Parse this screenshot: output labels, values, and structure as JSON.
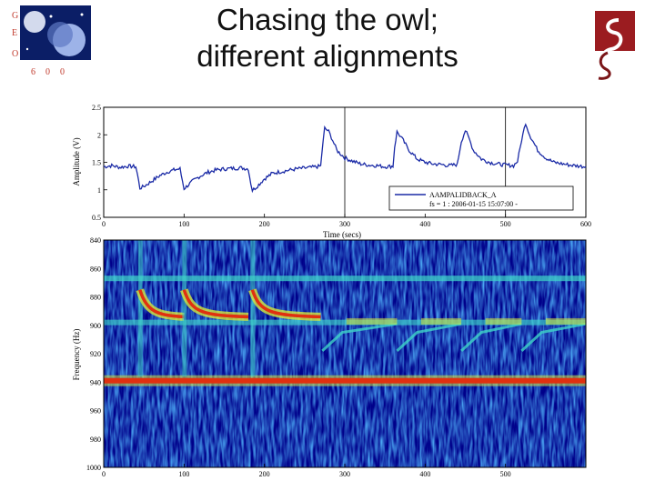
{
  "slide": {
    "title_line1": "Chasing the owl;",
    "title_line2": "different alignments",
    "logo_left_letters": [
      "G",
      "E",
      "O",
      "6",
      "0",
      "0"
    ]
  },
  "chart_data": [
    {
      "type": "line",
      "xlabel": "Time (secs)",
      "ylabel": "Amplitude (V)",
      "xlim": [
        0,
        600
      ],
      "ylim": [
        0.5,
        2.5
      ],
      "xticks": [
        0,
        100,
        200,
        300,
        400,
        500,
        600
      ],
      "yticks": [
        0.5,
        1,
        1.5,
        2,
        2.5
      ],
      "legend": {
        "placement": "bottom-right",
        "label": "AAMPALIDBACK_A",
        "info": "fs = 1 : 2006-01-15 15:07:00 -"
      },
      "color": "#1a2aa6",
      "series": [
        {
          "x": [
            0,
            10,
            20,
            30,
            40,
            42,
            45,
            50,
            60,
            70,
            80,
            90,
            95,
            98,
            100,
            110,
            120,
            130,
            140,
            150,
            160,
            170,
            180,
            183,
            185,
            190,
            200,
            210,
            220,
            240,
            260,
            270,
            272,
            275,
            280,
            285,
            290,
            300,
            310,
            320,
            330,
            340,
            350,
            360,
            362,
            365,
            370,
            380,
            390,
            400,
            410,
            420,
            430,
            440,
            445,
            450,
            455,
            460,
            470,
            480,
            490,
            500,
            510,
            515,
            520,
            525,
            530,
            540,
            550,
            560,
            580,
            600
          ],
          "y": [
            1.42,
            1.44,
            1.41,
            1.43,
            1.42,
            1.28,
            1.03,
            1.06,
            1.16,
            1.26,
            1.33,
            1.37,
            1.38,
            1.16,
            1.02,
            1.15,
            1.25,
            1.32,
            1.36,
            1.38,
            1.39,
            1.4,
            1.38,
            1.12,
            0.99,
            1.05,
            1.2,
            1.3,
            1.33,
            1.38,
            1.41,
            1.43,
            1.75,
            2.12,
            2.06,
            1.9,
            1.72,
            1.58,
            1.52,
            1.47,
            1.45,
            1.44,
            1.42,
            1.43,
            1.78,
            2.05,
            1.96,
            1.72,
            1.56,
            1.5,
            1.47,
            1.46,
            1.44,
            1.46,
            1.88,
            2.08,
            1.92,
            1.72,
            1.56,
            1.5,
            1.47,
            1.45,
            1.44,
            1.52,
            1.9,
            2.22,
            2.0,
            1.72,
            1.58,
            1.5,
            1.45,
            1.42
          ]
        }
      ]
    },
    {
      "type": "heatmap",
      "ylabel": "Frequency (Hz)",
      "xlim": [
        0,
        600
      ],
      "ylim": [
        1000,
        840
      ],
      "xticks": [
        0,
        100,
        200,
        300,
        400,
        500
      ],
      "yticks": [
        840,
        860,
        880,
        900,
        920,
        940,
        960,
        980,
        1000
      ],
      "colormap": [
        "#00007a",
        "#0a3cc8",
        "#1f8fe6",
        "#3fd6c8",
        "#d8e83a",
        "#f2a020",
        "#e03010"
      ],
      "features": [
        {
          "kind": "constant_line",
          "frequency": 939,
          "intensity": 1.0
        },
        {
          "kind": "constant_line",
          "frequency": 867,
          "intensity": 0.55
        },
        {
          "kind": "constant_line",
          "frequency": 898,
          "intensity": 0.45
        },
        {
          "kind": "chirp_band",
          "segments": [
            [
              45,
              100,
              875,
              893
            ],
            [
              100,
              180,
              875,
              893
            ],
            [
              185,
              270,
              875,
              893
            ]
          ]
        }
      ]
    }
  ]
}
